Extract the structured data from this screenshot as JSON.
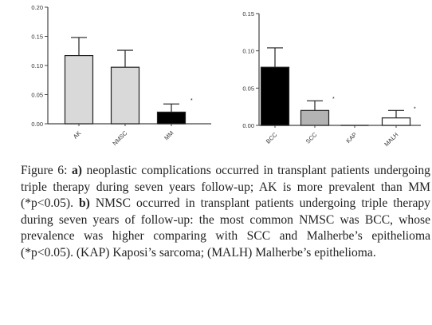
{
  "chart_data": [
    {
      "type": "bar",
      "panel": "a",
      "categories": [
        "AK",
        "NMSC",
        "MM"
      ],
      "values": [
        0.117,
        0.097,
        0.02
      ],
      "error": [
        0.031,
        0.029,
        0.014
      ],
      "colors": [
        "#d9d9d9",
        "#d9d9d9",
        "#000000"
      ],
      "ylim": [
        0,
        0.2
      ],
      "yticks": [
        "0.00",
        "0.05",
        "0.10",
        "0.15",
        "0.20"
      ],
      "annotations": [
        {
          "category": "MM",
          "text": "*"
        }
      ]
    },
    {
      "type": "bar",
      "panel": "b",
      "categories": [
        "BCC",
        "SCC",
        "KAP",
        "MALH"
      ],
      "values": [
        0.078,
        0.02,
        0.0,
        0.01
      ],
      "error": [
        0.026,
        0.013,
        0.0,
        0.01
      ],
      "colors": [
        "#000000",
        "#b3b3b3",
        "#ffffff",
        "#ffffff"
      ],
      "ylim": [
        0,
        0.15
      ],
      "yticks": [
        "0.00",
        "0.05",
        "0.10",
        "0.15"
      ],
      "annotations": [
        {
          "category": "SCC",
          "text": "*"
        },
        {
          "category": "MALH",
          "text": "*"
        }
      ]
    }
  ],
  "caption": {
    "label": "Figure 6:",
    "a_letter": "a)",
    "a_text": " neoplastic complications occurred in transplant patients undergoing triple therapy during seven years follow-up; AK is more prevalent than MM (*p<0.05). ",
    "b_letter": "b)",
    "b_text": " NMSC occurred in transplant patients undergoing triple therapy during seven years of follow-up: the most common NMSC was BCC, whose prevalence was higher comparing with SCC and Malherbe’s epithelioma (*p<0.05). (KAP) Kaposi’s sarcoma; (MALH) Malherbe’s epithelioma."
  }
}
